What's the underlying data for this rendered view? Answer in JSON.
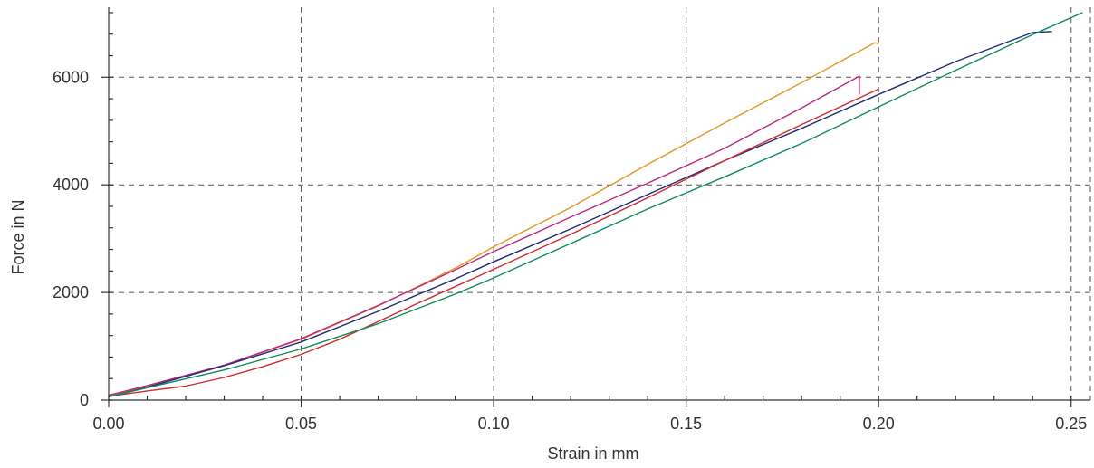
{
  "chart_data": {
    "type": "line",
    "title": "",
    "xlabel": "Strain in mm",
    "ylabel": "Force in N",
    "xlim": [
      0,
      0.255
    ],
    "ylim": [
      0,
      7300
    ],
    "x_ticks": [
      0.0,
      0.05,
      0.1,
      0.15,
      0.2,
      0.25
    ],
    "x_tick_labels": [
      "0.00",
      "0.05",
      "0.10",
      "0.15",
      "0.20",
      "0.25"
    ],
    "y_ticks": [
      0,
      2000,
      4000,
      6000
    ],
    "y_tick_labels": [
      "0",
      "2000",
      "4000",
      "6000"
    ],
    "x_minor_step": 0.01,
    "y_minor_step": 400,
    "grid": true,
    "legend": "none",
    "series": [
      {
        "color": "#e8961e",
        "x": [
          0.0,
          0.01,
          0.03,
          0.05,
          0.07,
          0.09,
          0.1,
          0.12,
          0.14,
          0.16,
          0.18,
          0.199,
          0.2
        ],
        "y": [
          80,
          260,
          650,
          1130,
          1750,
          2450,
          2850,
          3580,
          4380,
          5150,
          5900,
          6640,
          6620
        ]
      },
      {
        "color": "#c0267a",
        "x": [
          0.0,
          0.01,
          0.03,
          0.05,
          0.07,
          0.09,
          0.1,
          0.12,
          0.14,
          0.16,
          0.18,
          0.195,
          0.195
        ],
        "y": [
          90,
          270,
          650,
          1140,
          1760,
          2420,
          2760,
          3400,
          4030,
          4680,
          5430,
          6020,
          5680
        ]
      },
      {
        "color": "#1f2a78",
        "x": [
          0.0,
          0.01,
          0.03,
          0.05,
          0.07,
          0.09,
          0.1,
          0.12,
          0.14,
          0.16,
          0.18,
          0.2,
          0.22,
          0.24,
          0.245
        ],
        "y": [
          60,
          240,
          640,
          1080,
          1650,
          2250,
          2570,
          3180,
          3820,
          4450,
          5050,
          5680,
          6290,
          6830,
          6850
        ]
      },
      {
        "color": "#d42a2a",
        "x": [
          0.0,
          0.01,
          0.02,
          0.03,
          0.04,
          0.05,
          0.06,
          0.08,
          0.1,
          0.12,
          0.14,
          0.16,
          0.18,
          0.2
        ],
        "y": [
          70,
          170,
          260,
          420,
          620,
          850,
          1130,
          1790,
          2430,
          3080,
          3760,
          4450,
          5120,
          5780
        ]
      },
      {
        "color": "#0f8a5c",
        "x": [
          0.0,
          0.01,
          0.03,
          0.05,
          0.07,
          0.09,
          0.1,
          0.12,
          0.14,
          0.16,
          0.18,
          0.2,
          0.22,
          0.24,
          0.253
        ],
        "y": [
          60,
          230,
          560,
          950,
          1420,
          1970,
          2270,
          2910,
          3550,
          4150,
          4770,
          5450,
          6130,
          6790,
          7200
        ]
      }
    ]
  }
}
